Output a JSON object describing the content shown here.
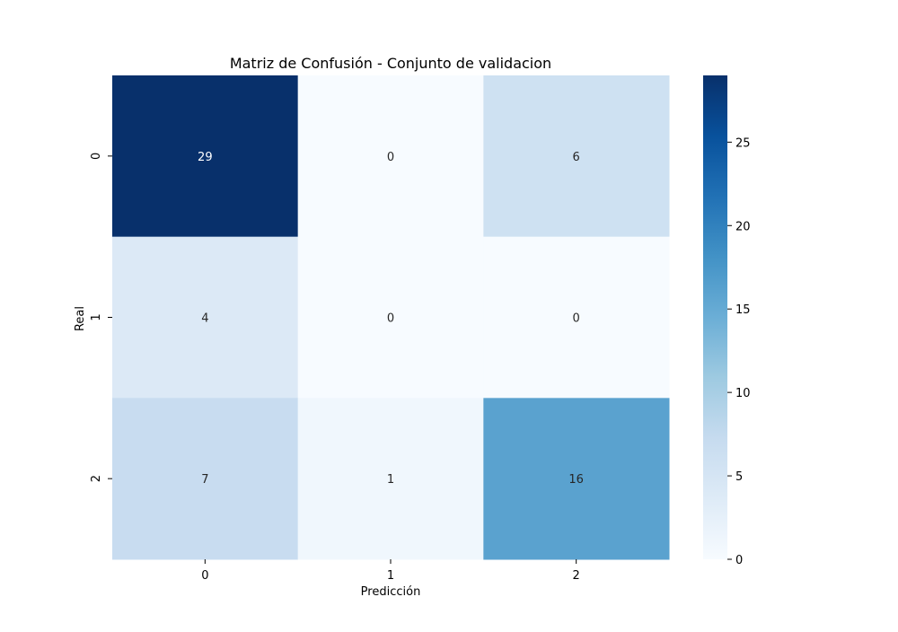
{
  "chart_data": {
    "type": "heatmap",
    "title": "Matriz de Confusión - Conjunto de validacion",
    "xlabel": "Predicción",
    "ylabel": "Real",
    "x_categories": [
      "0",
      "1",
      "2"
    ],
    "y_categories": [
      "0",
      "1",
      "2"
    ],
    "values": [
      [
        29,
        0,
        6
      ],
      [
        4,
        0,
        0
      ],
      [
        7,
        1,
        16
      ]
    ],
    "colormap": "Blues",
    "colorbar": {
      "min": 0,
      "max": 29,
      "ticks": [
        "0",
        "5",
        "10",
        "15",
        "20",
        "25"
      ]
    }
  }
}
